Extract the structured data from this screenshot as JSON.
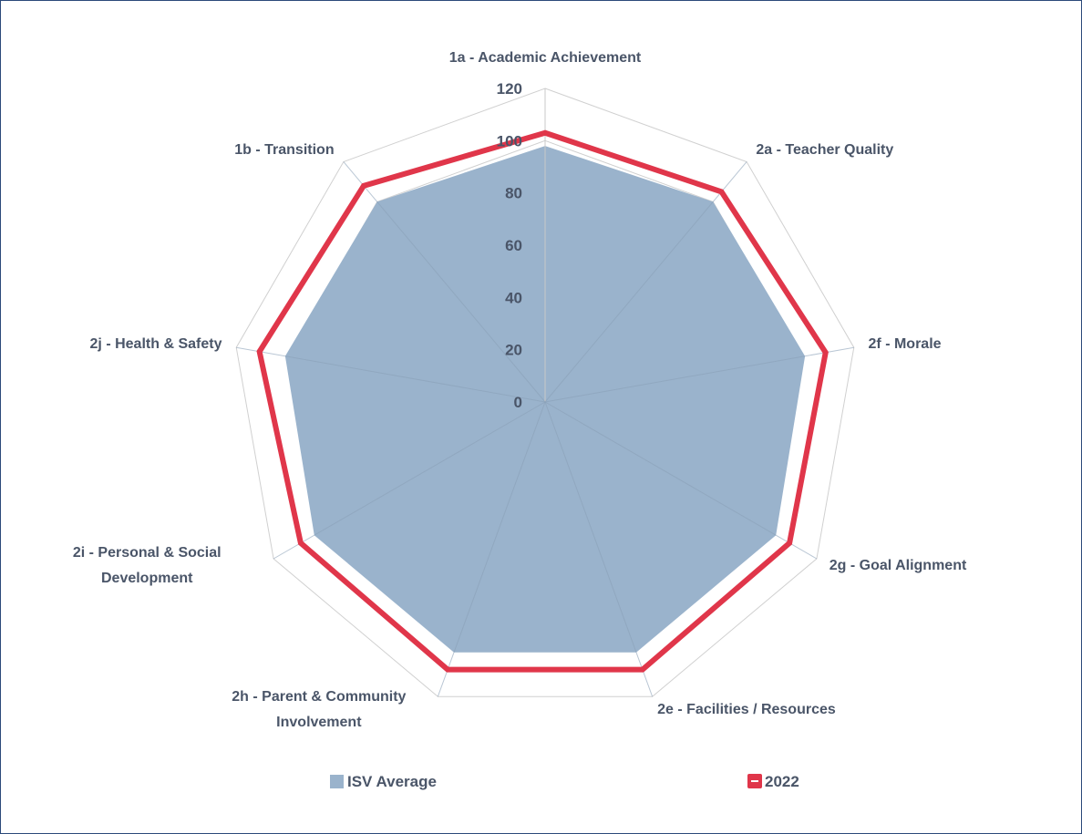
{
  "chart_data": {
    "type": "radar",
    "categories": [
      "1a - Academic Achievement",
      "2a - Teacher Quality",
      "2f - Morale",
      "2g - Goal Alignment",
      "2e - Facilities / Resources",
      "2h - Parent & Community Involvement",
      "2i - Personal & Social Development",
      "2j - Health & Safety",
      "1b - Transition"
    ],
    "series": [
      {
        "name": "ISV Average",
        "color": "#9ab3cc",
        "values": [
          98,
          100,
          101,
          102,
          102,
          102,
          102,
          101,
          100
        ]
      },
      {
        "name": "2022",
        "color": "#e0364a",
        "values": [
          103,
          105,
          109,
          108,
          109,
          109,
          108,
          111,
          108
        ]
      }
    ],
    "ylim": [
      0,
      120
    ],
    "yticks": [
      0,
      20,
      40,
      60,
      80,
      100,
      120
    ],
    "grid": true,
    "legend": "bottom"
  }
}
